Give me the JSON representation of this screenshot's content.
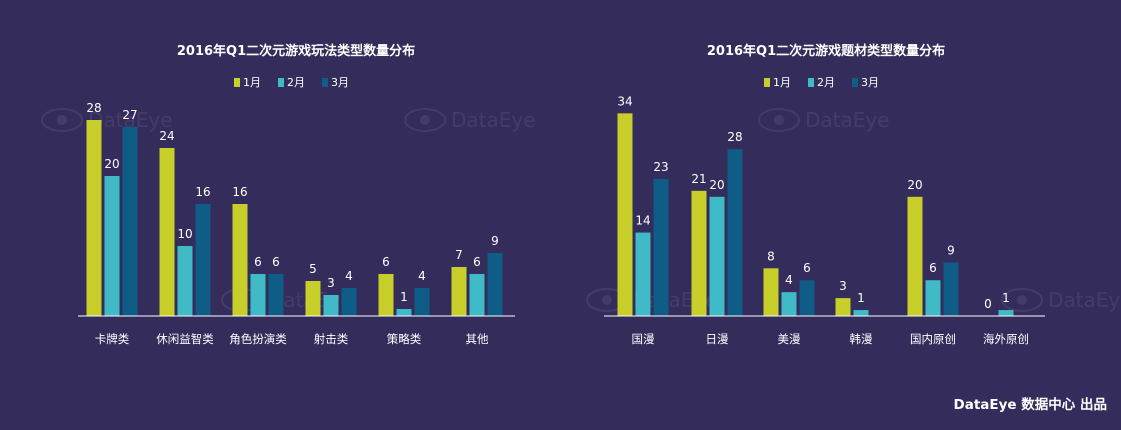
{
  "footer_text": "DataEye 数据中心 出品",
  "watermark_text": "DataEye",
  "colors": {
    "background": "#342d5c",
    "jan": "#c8cf2a",
    "feb": "#3fbac6",
    "mar": "#0f5c86",
    "axis": "#ffffff"
  },
  "chart_data": [
    {
      "type": "bar",
      "title": "2016年Q1二次元游戏玩法类型数量分布",
      "categories": [
        "卡牌类",
        "休闲益智类",
        "角色扮演类",
        "射击类",
        "策略类",
        "其他"
      ],
      "series": [
        {
          "name": "1月",
          "values": [
            28,
            24,
            16,
            5,
            6,
            7
          ]
        },
        {
          "name": "2月",
          "values": [
            20,
            10,
            6,
            3,
            1,
            6
          ]
        },
        {
          "name": "3月",
          "values": [
            27,
            16,
            6,
            4,
            4,
            9
          ]
        }
      ],
      "legend_position": "top-center",
      "grid": false
    },
    {
      "type": "bar",
      "title": "2016年Q1二次元游戏题材类型数量分布",
      "categories": [
        "国漫",
        "日漫",
        "美漫",
        "韩漫",
        "国内原创",
        "海外原创"
      ],
      "series": [
        {
          "name": "1月",
          "values": [
            34,
            21,
            8,
            3,
            20,
            0
          ]
        },
        {
          "name": "2月",
          "values": [
            14,
            20,
            4,
            1,
            6,
            1
          ]
        },
        {
          "name": "3月",
          "values": [
            23,
            28,
            6,
            null,
            9,
            null
          ]
        }
      ],
      "legend_position": "top-center",
      "grid": false
    }
  ]
}
